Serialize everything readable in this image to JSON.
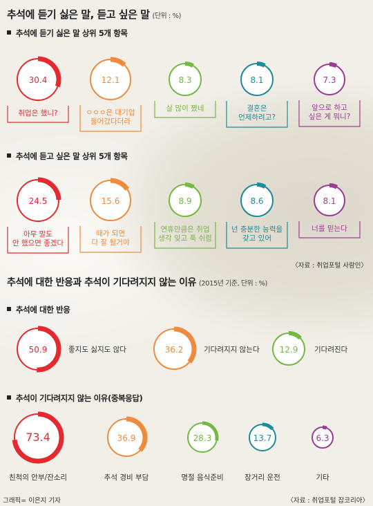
{
  "title": "추석에 듣기 싫은 말, 듣고 싶은 말",
  "title_unit": "(단위 : %)",
  "title2": "추석에 대한 반응과 추석이 기다려지지 않는 이유",
  "title2_unit": "(2015년 기준, 단위 : %)",
  "source1": "〈자료 : 취업포털 사람인〉",
  "source2": "〈자료 : 취업포털 잡코리아〉",
  "credit": "그래픽= 이은지 기자",
  "colors": {
    "red": "#e42a2f",
    "orange": "#ef8b3e",
    "green": "#74b942",
    "teal": "#1f8a99",
    "purple": "#9c3b96"
  },
  "chart_data": [
    {
      "type": "donut",
      "title": "추석에 듣기 싫은 말 상위 5개 항목",
      "categories": [
        "취업은 했니?",
        "ㅇㅇㅇ은 대기업 들어갔다더라",
        "살 많이 쪘네",
        "결혼은 언제하려고?",
        "앞으로 하고 싶은 게 뭐니?"
      ],
      "values": [
        30.4,
        12.1,
        8.3,
        8.1,
        7.3
      ],
      "colors": [
        "red",
        "orange",
        "green",
        "teal",
        "purple"
      ]
    },
    {
      "type": "donut",
      "title": "추석에 듣고 싶은 말 상위 5개 항목",
      "categories": [
        "아무 말도 안 했으면 좋겠다",
        "때가 되면 다 잘 될거야",
        "연휴만큼은 취업 생각 잊고 푹 쉬렴",
        "넌 충분한 능력을 갖고 있어",
        "너를 믿는다"
      ],
      "values": [
        24.5,
        15.6,
        8.9,
        8.6,
        8.1
      ],
      "colors": [
        "red",
        "orange",
        "green",
        "teal",
        "purple"
      ]
    },
    {
      "type": "donut",
      "title": "추석에 대한 반응",
      "categories": [
        "좋지도 싫지도 않다",
        "기다려지지 않는다",
        "기다려진다"
      ],
      "values": [
        50.9,
        36.2,
        12.9
      ],
      "colors": [
        "red",
        "orange",
        "green"
      ]
    },
    {
      "type": "donut",
      "title": "추석이 기다려지지 않는 이유(중복응답)",
      "categories": [
        "친척의 안부/잔소리",
        "추석 경비 부담",
        "명절 음식준비",
        "장거리 운전",
        "기타"
      ],
      "values": [
        73.4,
        36.9,
        28.3,
        13.7,
        6.3
      ],
      "colors": [
        "red",
        "orange",
        "green",
        "teal",
        "purple"
      ]
    }
  ]
}
